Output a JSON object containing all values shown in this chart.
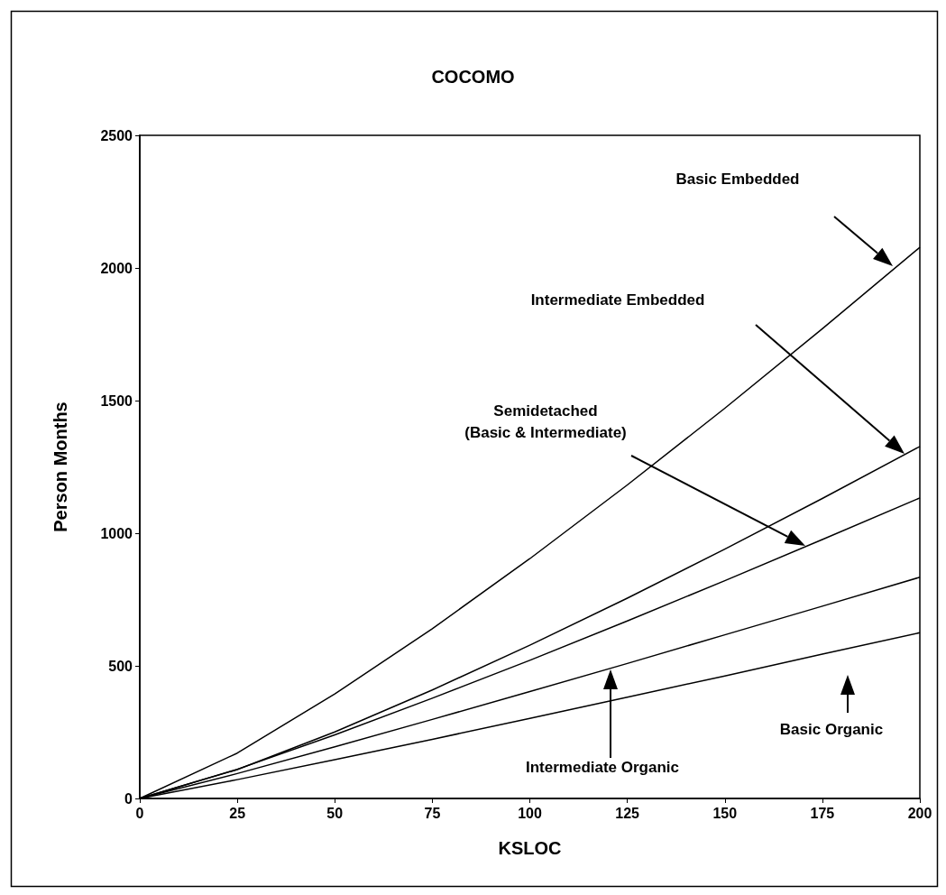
{
  "chart_data": {
    "type": "line",
    "title": "COCOMO",
    "xlabel": "KSLOC",
    "ylabel": "Person Months",
    "x": [
      0,
      25,
      50,
      75,
      100,
      125,
      150,
      175,
      200
    ],
    "series": [
      {
        "color": "#000000",
        "values": [
          0,
          171,
          394,
          640,
          904,
          1182,
          1471,
          1771,
          2078
        ]
      },
      {
        "color": "#000000",
        "values": [
          0,
          109,
          251,
          409,
          578,
          755,
          940,
          1131,
          1327
        ]
      },
      {
        "color": "#000000",
        "values": [
          0,
          110,
          240,
          378,
          521,
          669,
          821,
          976,
          1133
        ]
      },
      {
        "color": "#000000",
        "values": [
          0,
          94,
          195,
          298,
          403,
          509,
          617,
          725,
          834
        ]
      },
      {
        "color": "#000000",
        "values": [
          0,
          71,
          146,
          223,
          302,
          382,
          462,
          544,
          625
        ]
      }
    ],
    "xlim": [
      0,
      200
    ],
    "xticks": [
      0,
      25,
      50,
      75,
      100,
      125,
      150,
      175,
      200
    ],
    "ylim": [
      0,
      2500
    ],
    "yticks": [
      0,
      500,
      1000,
      1500,
      2000,
      2500
    ],
    "grid": false,
    "marker": "none",
    "line_style": "solid",
    "annotations": [
      "Basic Embedded",
      "Intermediate Embedded",
      "Semidetached\n(Basic & Intermediate)",
      "Intermediate Organic",
      "Basic Organic"
    ]
  }
}
